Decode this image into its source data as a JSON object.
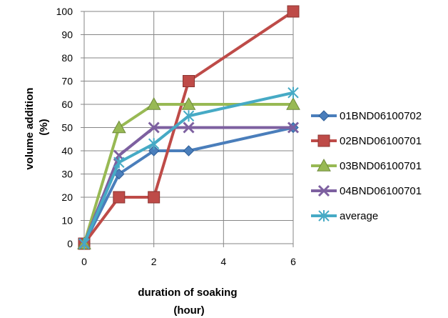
{
  "chart_data": {
    "type": "line",
    "title": "",
    "xlabel": [
      "duration of soaking",
      "(hour)"
    ],
    "ylabel": [
      "volume addition",
      "(%)"
    ],
    "xlim": [
      0,
      6
    ],
    "ylim": [
      0,
      100
    ],
    "xticks": [
      "0",
      "2",
      "4",
      "6"
    ],
    "xtick_values": [
      0,
      2,
      4,
      6
    ],
    "yticks": [
      "0",
      "10",
      "20",
      "30",
      "40",
      "50",
      "60",
      "70",
      "80",
      "90",
      "100"
    ],
    "ytick_values": [
      0,
      10,
      20,
      30,
      40,
      50,
      60,
      70,
      80,
      90,
      100
    ],
    "grid": true,
    "legend_position": "right",
    "series": [
      {
        "name": "01BND06100702",
        "color": "#4a7ebb",
        "marker": "diamond",
        "x": [
          0,
          1,
          2,
          3,
          6
        ],
        "y": [
          0,
          30,
          40,
          40,
          50
        ]
      },
      {
        "name": "02BND06100701",
        "color": "#be4b48",
        "marker": "square",
        "x": [
          0,
          1,
          2,
          3,
          6
        ],
        "y": [
          0,
          20,
          20,
          70,
          100
        ]
      },
      {
        "name": "03BND06100701",
        "color": "#98b954",
        "marker": "triangle",
        "x": [
          0,
          1,
          2,
          3,
          6
        ],
        "y": [
          0,
          50,
          60,
          60,
          60
        ]
      },
      {
        "name": "04BND06100701",
        "color": "#7d60a0",
        "marker": "x",
        "x": [
          0,
          1,
          2,
          3,
          6
        ],
        "y": [
          0,
          38,
          50,
          50,
          50
        ]
      },
      {
        "name": "average",
        "color": "#46aac5",
        "marker": "star",
        "x": [
          0,
          1,
          2,
          3,
          6
        ],
        "y": [
          0,
          35,
          43,
          55,
          65
        ]
      }
    ]
  }
}
